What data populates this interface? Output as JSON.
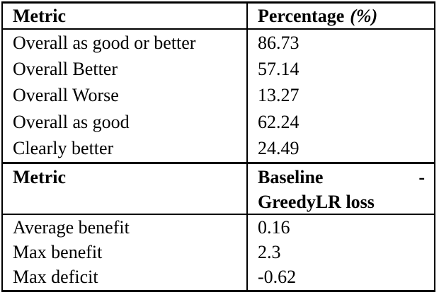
{
  "page": {
    "background": "#ffffff",
    "rule_color": "#000000",
    "text_color": "#000000"
  },
  "table": {
    "sections": [
      {
        "header": {
          "metric": "Metric",
          "value": "Percentage",
          "value_unit": "(%)"
        },
        "rows": [
          {
            "metric": "Overall as good or better",
            "value": "86.73"
          },
          {
            "metric": "Overall Better",
            "value": "57.14"
          },
          {
            "metric": "Overall Worse",
            "value": "13.27"
          },
          {
            "metric": "Overall as good",
            "value": "62.24"
          },
          {
            "metric": "Clearly better",
            "value": "24.49"
          }
        ]
      },
      {
        "header": {
          "metric": "Metric",
          "value_line1": "Baseline",
          "value_dash": "-",
          "value_line2": "GreedyLR loss"
        },
        "rows": [
          {
            "metric": "Average benefit",
            "value": "0.16"
          },
          {
            "metric": "Max benefit",
            "value": "2.3"
          },
          {
            "metric": "Max deficit",
            "value": "-0.62"
          }
        ]
      }
    ]
  }
}
